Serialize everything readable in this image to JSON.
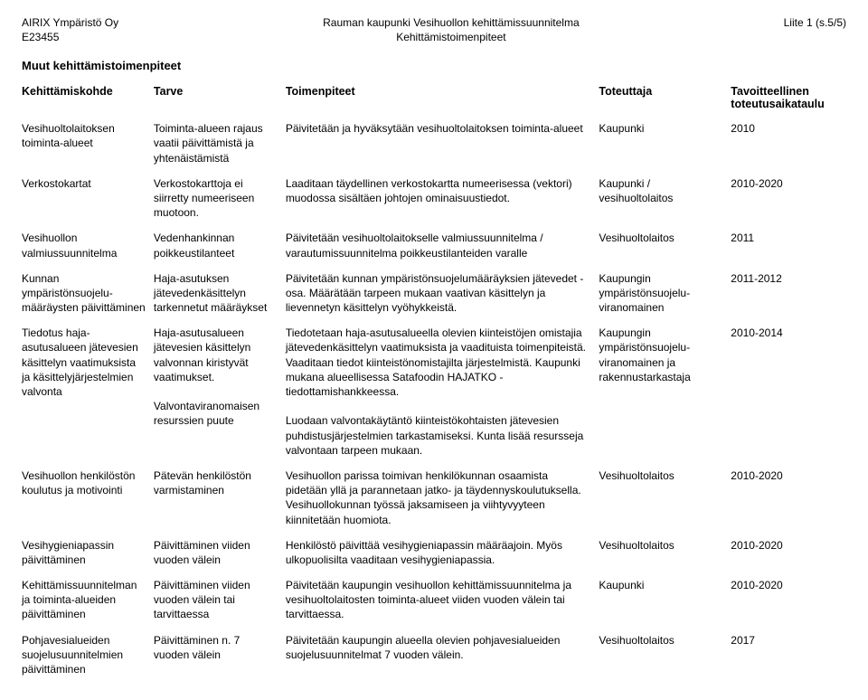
{
  "header": {
    "left_line1": "AIRIX Ympäristö Oy",
    "left_line2": "E23455",
    "center_line1": "Rauman kaupunki Vesihuollon kehittämissuunnitelma",
    "center_line2": "Kehittämistoimenpiteet",
    "right_line1": "Liite 1 (s.5/5)"
  },
  "section_title": "Muut kehittämistoimenpiteet",
  "columns": {
    "c0": "Kehittämiskohde",
    "c1": "Tarve",
    "c2": "Toimenpiteet",
    "c3": "Toteuttaja",
    "c4a": "Tavoitteellinen",
    "c4b": "toteutusaikataulu"
  },
  "rows": [
    {
      "kohde": "Vesihuoltolaitoksen toiminta-alueet",
      "tarve": "Toiminta-alueen rajaus vaatii päivittämistä ja yhtenäistämistä",
      "toimenpiteet": "Päivitetään ja hyväksytään vesihuoltolaitoksen toiminta-alueet",
      "toteuttaja": "Kaupunki",
      "aikataulu": "2010"
    },
    {
      "kohde": "Verkostokartat",
      "tarve": "Verkostokarttoja ei siirretty numeeriseen muotoon.",
      "toimenpiteet": "Laaditaan täydellinen verkostokartta numeerisessa (vektori) muodossa sisältäen johtojen ominaisuustiedot.",
      "toteuttaja": "Kaupunki / vesihuoltolaitos",
      "aikataulu": "2010-2020"
    },
    {
      "kohde": "Vesihuollon valmiussuunnitelma",
      "tarve": "Vedenhankinnan poikkeustilanteet",
      "toimenpiteet": "Päivitetään vesihuoltolaitokselle valmiussuunnitelma / varautumissuunnitelma poikkeustilanteiden varalle",
      "toteuttaja": "Vesihuoltolaitos",
      "aikataulu": "2011"
    },
    {
      "kohde": "Kunnan ympäristönsuojelu­määräysten päivittäminen",
      "tarve": "Haja-asutuksen jätevedenkäsittelyn tarkennetut määräykset",
      "toimenpiteet": "Päivitetään kunnan ympäristönsuojelumääräyksien jätevedet -osa. Määrätään tarpeen mukaan vaativan käsittelyn ja lievennetyn käsittelyn vyöhykkeistä.",
      "toteuttaja": "Kaupungin ympäristönsuojelu­viranomainen",
      "aikataulu": "2011-2012"
    },
    {
      "kohde": "Tiedotus haja-asutusalueen jätevesien käsittelyn vaatimuksista ja käsittelyjärjestelmien valvonta",
      "tarve": "Haja-asutusalueen jätevesien käsittelyn valvonnan kiristyvät vaatimukset.\n\nValvontaviranomaisen resurssien puute",
      "toimenpiteet": "Tiedotetaan haja-asutusalueella olevien kiinteistöjen omistajia jätevedenkäsittelyn vaatimuksista ja vaadituista toimenpiteistä. Vaaditaan tiedot kiinteistönomistajilta järjestelmistä. Kaupunki mukana alueellisessa Satafoodin HAJATKO - tiedottamishankkeessa.\n\nLuodaan valvontakäytäntö kiinteistökohtaisten jätevesien puhdistusjärjestelmien tarkastamiseksi. Kunta lisää resursseja valvontaan tarpeen mukaan.",
      "toteuttaja": "Kaupungin ympäristönsuojelu­viranomainen ja rakennustarkastaja",
      "aikataulu": "2010-2014"
    },
    {
      "kohde": "Vesihuollon henkilöstön koulutus ja motivointi",
      "tarve": "Pätevän henkilöstön varmistaminen",
      "toimenpiteet": "Vesihuollon parissa toimivan henkilökunnan osaamista pidetään yllä ja parannetaan jatko- ja täydennyskoulutuksella. Vesihuollokunnan työssä jaksamiseen ja viihtyvyyteen kiinnitetään huomiota.",
      "toteuttaja": "Vesihuoltolaitos",
      "aikataulu": "2010-2020"
    },
    {
      "kohde": "Vesihygieniapassin päivittäminen",
      "tarve": "Päivittäminen viiden vuoden välein",
      "toimenpiteet": "Henkilöstö päivittää vesihygieniapassin määräajoin. Myös ulkopuolisilta vaaditaan vesihygieniapassia.",
      "toteuttaja": "Vesihuoltolaitos",
      "aikataulu": "2010-2020"
    },
    {
      "kohde": "Kehittämis­suunnitelman ja toiminta-alueiden päivittäminen",
      "tarve": "Päivittäminen viiden vuoden välein tai tarvittaessa",
      "toimenpiteet": "Päivitetään kaupungin vesihuollon kehittämissuunnitelma ja vesihuoltolaitosten toiminta-alueet viiden vuoden välein tai tarvittaessa.",
      "toteuttaja": "Kaupunki",
      "aikataulu": "2010-2020"
    },
    {
      "kohde": "Pohjavesialueiden suojelusuunnitelmien päivittäminen",
      "tarve": "Päivittäminen n. 7 vuoden välein",
      "toimenpiteet": "Päivitetään kaupungin alueella olevien pohjavesialueiden suojelusuunnitelmat 7 vuoden välein.",
      "toteuttaja": "Vesihuoltolaitos",
      "aikataulu": "2017"
    }
  ]
}
